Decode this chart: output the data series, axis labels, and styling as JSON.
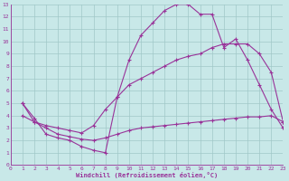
{
  "xlabel": "Windchill (Refroidissement éolien,°C)",
  "bg_color": "#c8e8e8",
  "grid_color": "#a0c8c8",
  "line_color": "#993399",
  "xlim": [
    0,
    23
  ],
  "ylim": [
    0,
    13
  ],
  "xticks": [
    0,
    1,
    2,
    3,
    4,
    5,
    6,
    7,
    8,
    9,
    10,
    11,
    12,
    13,
    14,
    15,
    16,
    17,
    18,
    19,
    20,
    21,
    22,
    23
  ],
  "yticks": [
    0,
    1,
    2,
    3,
    4,
    5,
    6,
    7,
    8,
    9,
    10,
    11,
    12,
    13
  ],
  "line1_x": [
    1,
    2,
    3,
    4,
    5,
    6,
    7,
    8,
    9,
    10,
    11,
    12,
    13,
    14,
    15,
    16,
    17,
    18,
    19,
    20,
    21,
    22,
    23
  ],
  "line1_y": [
    5.0,
    3.5,
    3.0,
    2.5,
    2.3,
    2.1,
    2.0,
    2.2,
    2.5,
    2.8,
    3.0,
    3.1,
    3.2,
    3.3,
    3.4,
    3.5,
    3.6,
    3.7,
    3.8,
    3.9,
    3.9,
    4.0,
    3.5
  ],
  "line2_x": [
    1,
    2,
    3,
    4,
    5,
    6,
    7,
    8,
    9,
    10,
    11,
    12,
    13,
    14,
    15,
    16,
    17,
    18,
    19,
    20,
    21,
    22,
    23
  ],
  "line2_y": [
    4.0,
    3.5,
    3.2,
    3.0,
    2.8,
    2.6,
    3.2,
    4.5,
    5.5,
    6.5,
    7.0,
    7.5,
    8.0,
    8.5,
    8.8,
    9.0,
    9.5,
    9.8,
    9.8,
    9.8,
    9.0,
    7.5,
    3.5
  ],
  "line3_x": [
    1,
    2,
    3,
    4,
    5,
    6,
    7,
    8,
    9,
    10,
    11,
    12,
    13,
    14,
    15,
    16,
    17,
    18,
    19,
    20,
    21,
    22,
    23
  ],
  "line3_y": [
    5.0,
    3.8,
    2.5,
    2.2,
    2.0,
    1.5,
    1.2,
    1.0,
    5.5,
    8.5,
    10.5,
    11.5,
    12.5,
    13.0,
    13.0,
    12.2,
    12.2,
    9.5,
    10.2,
    8.5,
    6.5,
    4.5,
    3.0
  ]
}
